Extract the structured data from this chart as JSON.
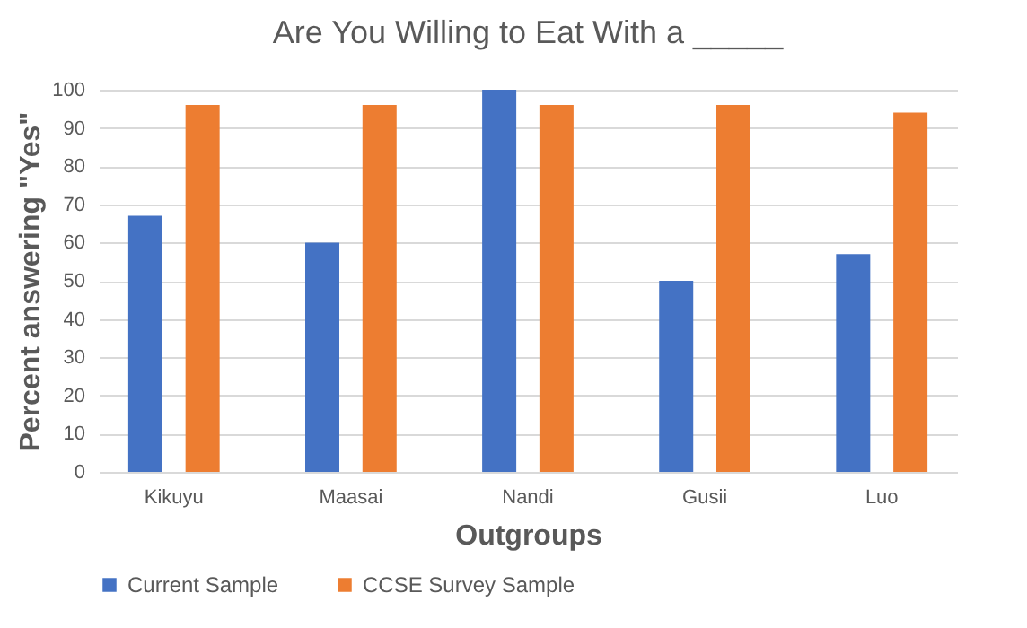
{
  "chart_data": {
    "type": "bar",
    "title": "Are You Willing to Eat With a _____",
    "xlabel": "Outgroups",
    "ylabel": "Percent answering \"Yes\"",
    "categories": [
      "Kikuyu",
      "Maasai",
      "Nandi",
      "Gusii",
      "Luo"
    ],
    "series": [
      {
        "name": "Current Sample",
        "color": "#4472c4",
        "values": [
          67,
          60,
          100,
          50,
          57
        ]
      },
      {
        "name": "CCSE Survey Sample",
        "color": "#ed7d31",
        "values": [
          96,
          96,
          96,
          96,
          94
        ]
      }
    ],
    "ylim": [
      0,
      100
    ],
    "yticks": [
      0,
      10,
      20,
      30,
      40,
      50,
      60,
      70,
      80,
      90,
      100
    ],
    "grid": "y",
    "legend": "bottom"
  }
}
